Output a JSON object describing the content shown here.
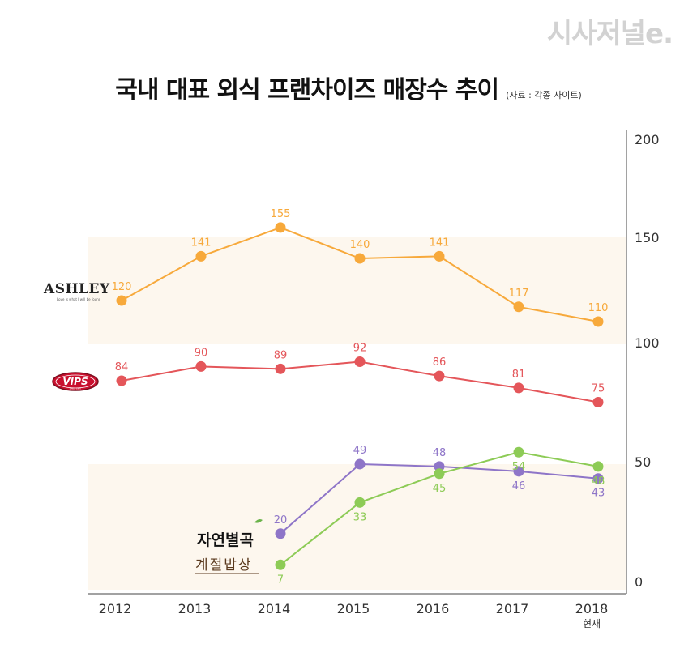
{
  "publisher": "시사저널e.",
  "title": "국내 대표 외식 프랜차이즈 매장수 추이",
  "source": "(자료 : 각종 사이트)",
  "chart_data": {
    "type": "line",
    "title": "국내 대표 외식 프랜차이즈 매장수 추이",
    "categories": [
      "2012",
      "2013",
      "2014",
      "2015",
      "2016",
      "2017",
      "2018"
    ],
    "category_sublabels": {
      "2018": "현재"
    },
    "yticks": [
      "0",
      "50",
      "100",
      "150",
      "200"
    ],
    "ylim": [
      0,
      200
    ],
    "axis_note": "broken y-axis: segments 0–50, 50–100, 100–150, 150–200 have different spacing",
    "bands": [
      {
        "segment": [
          100,
          150
        ],
        "color": "#fdf7ee"
      },
      {
        "segment": [
          0,
          50
        ],
        "color": "#fdf7ee"
      }
    ],
    "series": [
      {
        "name": "ASHLEY",
        "color": "#f7a93b",
        "points": [
          {
            "x": "2012",
            "y": 120
          },
          {
            "x": "2013",
            "y": 141
          },
          {
            "x": "2014",
            "y": 155
          },
          {
            "x": "2015",
            "y": 140
          },
          {
            "x": "2016",
            "y": 141
          },
          {
            "x": "2017",
            "y": 117
          },
          {
            "x": "2018",
            "y": 110
          }
        ]
      },
      {
        "name": "VIPS",
        "color": "#e4565a",
        "points": [
          {
            "x": "2012",
            "y": 84
          },
          {
            "x": "2013",
            "y": 90
          },
          {
            "x": "2014",
            "y": 89
          },
          {
            "x": "2015",
            "y": 92
          },
          {
            "x": "2016",
            "y": 86
          },
          {
            "x": "2017",
            "y": 81
          },
          {
            "x": "2018",
            "y": 75
          }
        ]
      },
      {
        "name": "자연별곡",
        "color": "#8e75c8",
        "points": [
          {
            "x": "2014",
            "y": 20
          },
          {
            "x": "2015",
            "y": 49
          },
          {
            "x": "2016",
            "y": 48
          },
          {
            "x": "2017",
            "y": 46
          },
          {
            "x": "2018",
            "y": 43
          }
        ]
      },
      {
        "name": "계절밥상",
        "color": "#8dcb56",
        "points": [
          {
            "x": "2014",
            "y": 7
          },
          {
            "x": "2015",
            "y": 33
          },
          {
            "x": "2016",
            "y": 45
          },
          {
            "x": "2017",
            "y": 54
          },
          {
            "x": "2018",
            "y": 48
          }
        ]
      }
    ]
  },
  "logos": {
    "ashley": {
      "name": "ASHLEY",
      "tagline": "Love is what I will be found"
    },
    "vips": {
      "name": "VIPS",
      "sub": "SINCE 1997"
    },
    "jayeon": {
      "name": "자연별곡"
    },
    "gyejeol": {
      "name": "계절밥상"
    }
  }
}
